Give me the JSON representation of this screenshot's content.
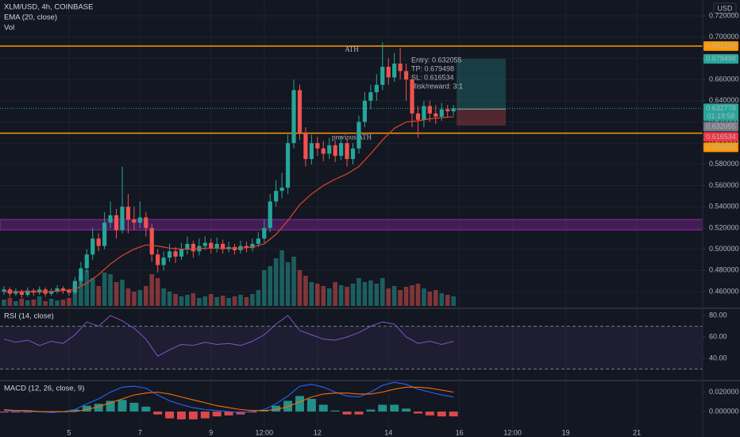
{
  "chart_data": [
    {
      "type": "candlestick",
      "title": "XLM/USD, 4h, COINBASE",
      "currency": "USD",
      "countdown": "01:19:58",
      "up_color": "#26a69a",
      "down_color": "#ef5350",
      "xlim": [
        -0.67,
        118.13
      ],
      "xticks": [
        {
          "value": 11,
          "label": "5"
        },
        {
          "value": 23,
          "label": "7"
        },
        {
          "value": 35,
          "label": "9"
        },
        {
          "value": 44,
          "label": "12:00"
        },
        {
          "value": 53,
          "label": "12"
        },
        {
          "value": 65,
          "label": "14"
        },
        {
          "value": 77,
          "label": "16"
        },
        {
          "value": 86,
          "label": "12:00"
        },
        {
          "value": 95,
          "label": "19"
        },
        {
          "value": 107,
          "label": "21"
        }
      ],
      "ylim": [
        0.445,
        0.735
      ],
      "yticks": [
        {
          "value": 0.46,
          "label": "0.460000"
        },
        {
          "value": 0.48,
          "label": "0.480000"
        },
        {
          "value": 0.5,
          "label": "0.500000"
        },
        {
          "value": 0.52,
          "label": "0.520000"
        },
        {
          "value": 0.54,
          "label": "0.540000"
        },
        {
          "value": 0.56,
          "label": "0.560000"
        },
        {
          "value": 0.58,
          "label": "0.580000"
        },
        {
          "value": 0.6,
          "label": "0.600000"
        },
        {
          "value": 0.62,
          "label": "0.620000"
        },
        {
          "value": 0.64,
          "label": "0.640000"
        },
        {
          "value": 0.66,
          "label": "0.660000"
        },
        {
          "value": 0.68,
          "label": "0.680000"
        },
        {
          "value": 0.7,
          "label": "0.700000"
        },
        {
          "value": 0.72,
          "label": "0.720000"
        }
      ],
      "x": [
        0,
        1,
        2,
        3,
        4,
        5,
        6,
        7,
        8,
        9,
        10,
        11,
        12,
        13,
        14,
        15,
        16,
        17,
        18,
        19,
        20,
        21,
        22,
        23,
        24,
        25,
        26,
        27,
        28,
        29,
        30,
        31,
        32,
        33,
        34,
        35,
        36,
        37,
        38,
        39,
        40,
        41,
        42,
        43,
        44,
        45,
        46,
        47,
        48,
        49,
        50,
        51,
        52,
        53,
        54,
        55,
        56,
        57,
        58,
        59,
        60,
        61,
        62,
        63,
        64,
        65,
        66,
        67,
        68,
        69,
        70,
        71,
        72,
        73,
        74,
        75,
        76
      ],
      "open": [
        0.46,
        0.462,
        0.458,
        0.46,
        0.457,
        0.461,
        0.459,
        0.462,
        0.458,
        0.46,
        0.463,
        0.461,
        0.459,
        0.47,
        0.482,
        0.495,
        0.51,
        0.503,
        0.525,
        0.532,
        0.518,
        0.54,
        0.528,
        0.525,
        0.53,
        0.52,
        0.495,
        0.485,
        0.492,
        0.498,
        0.493,
        0.5,
        0.505,
        0.498,
        0.503,
        0.506,
        0.501,
        0.505,
        0.5,
        0.502,
        0.499,
        0.503,
        0.501,
        0.505,
        0.51,
        0.52,
        0.545,
        0.555,
        0.558,
        0.6,
        0.65,
        0.61,
        0.585,
        0.6,
        0.595,
        0.59,
        0.598,
        0.588,
        0.6,
        0.585,
        0.595,
        0.62,
        0.64,
        0.648,
        0.655,
        0.672,
        0.662,
        0.675,
        0.668,
        0.66,
        0.628,
        0.622,
        0.635,
        0.628,
        0.625,
        0.632,
        0.63
      ],
      "high": [
        0.465,
        0.464,
        0.463,
        0.462,
        0.464,
        0.463,
        0.465,
        0.464,
        0.463,
        0.466,
        0.465,
        0.463,
        0.474,
        0.488,
        0.5,
        0.52,
        0.515,
        0.535,
        0.545,
        0.538,
        0.578,
        0.552,
        0.54,
        0.545,
        0.535,
        0.524,
        0.5,
        0.498,
        0.505,
        0.502,
        0.506,
        0.512,
        0.508,
        0.51,
        0.512,
        0.51,
        0.511,
        0.509,
        0.507,
        0.505,
        0.508,
        0.507,
        0.51,
        0.516,
        0.528,
        0.552,
        0.565,
        0.572,
        0.608,
        0.66,
        0.655,
        0.615,
        0.608,
        0.606,
        0.602,
        0.605,
        0.603,
        0.606,
        0.605,
        0.6,
        0.626,
        0.648,
        0.655,
        0.665,
        0.695,
        0.68,
        0.685,
        0.69,
        0.675,
        0.662,
        0.635,
        0.64,
        0.64,
        0.636,
        0.638,
        0.636,
        0.636
      ],
      "low": [
        0.457,
        0.455,
        0.456,
        0.454,
        0.455,
        0.456,
        0.457,
        0.455,
        0.456,
        0.458,
        0.458,
        0.456,
        0.457,
        0.466,
        0.478,
        0.49,
        0.498,
        0.5,
        0.52,
        0.51,
        0.515,
        0.515,
        0.518,
        0.52,
        0.512,
        0.488,
        0.478,
        0.48,
        0.488,
        0.487,
        0.49,
        0.495,
        0.492,
        0.494,
        0.499,
        0.496,
        0.497,
        0.496,
        0.497,
        0.495,
        0.496,
        0.497,
        0.498,
        0.502,
        0.506,
        0.516,
        0.54,
        0.548,
        0.552,
        0.595,
        0.603,
        0.578,
        0.58,
        0.588,
        0.583,
        0.585,
        0.582,
        0.584,
        0.578,
        0.58,
        0.59,
        0.615,
        0.632,
        0.64,
        0.65,
        0.655,
        0.658,
        0.66,
        0.64,
        0.615,
        0.605,
        0.615,
        0.62,
        0.618,
        0.621,
        0.624,
        0.626
      ],
      "close": [
        0.462,
        0.458,
        0.46,
        0.457,
        0.461,
        0.459,
        0.462,
        0.458,
        0.46,
        0.463,
        0.461,
        0.459,
        0.47,
        0.482,
        0.495,
        0.51,
        0.503,
        0.525,
        0.532,
        0.518,
        0.54,
        0.528,
        0.525,
        0.53,
        0.52,
        0.495,
        0.485,
        0.492,
        0.498,
        0.493,
        0.5,
        0.505,
        0.498,
        0.503,
        0.506,
        0.501,
        0.505,
        0.5,
        0.502,
        0.499,
        0.503,
        0.501,
        0.505,
        0.51,
        0.52,
        0.545,
        0.555,
        0.558,
        0.6,
        0.65,
        0.61,
        0.585,
        0.6,
        0.595,
        0.59,
        0.598,
        0.588,
        0.6,
        0.585,
        0.595,
        0.62,
        0.64,
        0.648,
        0.655,
        0.672,
        0.662,
        0.675,
        0.668,
        0.66,
        0.628,
        0.622,
        0.635,
        0.628,
        0.625,
        0.632,
        0.63,
        0.632778
      ],
      "volume_name": "Vol",
      "volume": [
        8,
        10,
        6,
        9,
        7,
        8,
        12,
        6,
        9,
        7,
        8,
        10,
        30,
        38,
        45,
        35,
        25,
        42,
        40,
        30,
        33,
        22,
        18,
        20,
        25,
        40,
        35,
        22,
        18,
        15,
        12,
        14,
        16,
        10,
        12,
        15,
        11,
        13,
        10,
        12,
        14,
        11,
        15,
        20,
        45,
        50,
        60,
        70,
        55,
        62,
        45,
        38,
        30,
        28,
        25,
        22,
        30,
        26,
        24,
        28,
        35,
        30,
        32,
        28,
        35,
        22,
        25,
        20,
        24,
        26,
        28,
        22,
        18,
        20,
        16,
        14,
        12
      ],
      "ema": {
        "name": "EMA (20, close)",
        "color": "#e0452e",
        "x": [
          0,
          2,
          4,
          6,
          8,
          10,
          12,
          14,
          16,
          18,
          20,
          22,
          24,
          26,
          28,
          30,
          32,
          34,
          36,
          38,
          40,
          42,
          44,
          46,
          48,
          50,
          52,
          54,
          56,
          58,
          60,
          62,
          64,
          66,
          68,
          70,
          72,
          74,
          76
        ],
        "values": [
          0.46,
          0.46,
          0.46,
          0.46,
          0.46,
          0.461,
          0.462,
          0.468,
          0.476,
          0.486,
          0.494,
          0.5,
          0.504,
          0.503,
          0.501,
          0.5,
          0.5,
          0.501,
          0.501,
          0.501,
          0.501,
          0.502,
          0.505,
          0.514,
          0.527,
          0.542,
          0.552,
          0.56,
          0.566,
          0.571,
          0.578,
          0.59,
          0.603,
          0.614,
          0.62,
          0.621,
          0.623,
          0.624,
          0.625
        ]
      },
      "hlines": [
        {
          "label": "ATH",
          "value": 0.691534,
          "color": "#ff9800"
        },
        {
          "label": "previous ATH",
          "value": 0.609393,
          "color": "#ff9800"
        }
      ],
      "zone": {
        "range": [
          0.518,
          0.528
        ],
        "color": "#9c27b0"
      },
      "position": {
        "entry": 0.632055,
        "tp": 0.679498,
        "sl": 0.616534,
        "texts": [
          "Entry: 0.632055",
          "TP: 0.679498",
          "SL: 0.616534",
          "Risk/reward: 3:1"
        ]
      }
    },
    {
      "type": "line",
      "title": "RSI (14, close)",
      "color": "#7e57c2",
      "x": [
        0,
        2,
        4,
        6,
        8,
        10,
        12,
        14,
        16,
        18,
        20,
        22,
        24,
        26,
        28,
        30,
        32,
        34,
        36,
        38,
        40,
        42,
        44,
        46,
        48,
        50,
        52,
        54,
        56,
        58,
        60,
        62,
        64,
        66,
        68,
        70,
        72,
        74,
        76
      ],
      "values": [
        58,
        55,
        57,
        52,
        56,
        54,
        62,
        74,
        70,
        80,
        75,
        68,
        58,
        42,
        48,
        53,
        52,
        55,
        53,
        54,
        52,
        56,
        62,
        72,
        80,
        66,
        62,
        58,
        57,
        60,
        64,
        70,
        74,
        72,
        60,
        54,
        56,
        53,
        56
      ],
      "bands": [
        30,
        70
      ],
      "ylim": [
        20,
        86
      ],
      "yticks": [
        {
          "value": 40,
          "label": "40.00"
        },
        {
          "value": 60,
          "label": "60.00"
        },
        {
          "value": 80,
          "label": "80.00"
        }
      ]
    },
    {
      "type": "macd",
      "title": "MACD (12, 26, close, 9)",
      "x": [
        0,
        2,
        4,
        6,
        8,
        10,
        12,
        14,
        16,
        18,
        20,
        22,
        24,
        26,
        28,
        30,
        32,
        34,
        36,
        38,
        40,
        42,
        44,
        46,
        48,
        50,
        52,
        54,
        56,
        58,
        60,
        62,
        64,
        66,
        68,
        70,
        72,
        74,
        76
      ],
      "macd": {
        "color": "#2962ff",
        "values": [
          0.001,
          0.0,
          0.0,
          0.0,
          -0.001,
          0.0,
          0.002,
          0.008,
          0.013,
          0.02,
          0.025,
          0.026,
          0.024,
          0.017,
          0.011,
          0.007,
          0.004,
          0.002,
          0.001,
          0.0,
          -0.001,
          0.0,
          0.002,
          0.008,
          0.016,
          0.026,
          0.028,
          0.025,
          0.02,
          0.016,
          0.015,
          0.02,
          0.027,
          0.03,
          0.028,
          0.023,
          0.02,
          0.017,
          0.015
        ]
      },
      "signal": {
        "color": "#ff6d00",
        "values": [
          0.002,
          0.001,
          0.001,
          0.0,
          0.0,
          0.0,
          0.0,
          0.002,
          0.005,
          0.009,
          0.013,
          0.017,
          0.019,
          0.02,
          0.018,
          0.015,
          0.012,
          0.009,
          0.006,
          0.004,
          0.002,
          0.001,
          0.001,
          0.002,
          0.005,
          0.01,
          0.015,
          0.018,
          0.019,
          0.019,
          0.018,
          0.018,
          0.02,
          0.023,
          0.025,
          0.025,
          0.024,
          0.022,
          0.02
        ]
      },
      "histogram": {
        "up_color": "#26a69a",
        "down_color": "#ff5252",
        "values": [
          -0.001,
          -0.001,
          -0.001,
          0,
          -0.001,
          0,
          0.002,
          0.006,
          0.008,
          0.011,
          0.012,
          0.009,
          0.005,
          -0.003,
          -0.007,
          -0.008,
          -0.008,
          -0.007,
          -0.005,
          -0.004,
          -0.003,
          -0.001,
          0.001,
          0.006,
          0.011,
          0.016,
          0.013,
          0.007,
          0.001,
          -0.003,
          -0.003,
          0.002,
          0.007,
          0.007,
          0.003,
          -0.002,
          -0.004,
          -0.005,
          -0.005
        ]
      },
      "ylim": [
        -0.018,
        0.031
      ],
      "yticks": [
        {
          "value": 0,
          "label": "0.000000"
        },
        {
          "value": 0.02,
          "label": "0.020000"
        }
      ]
    }
  ]
}
